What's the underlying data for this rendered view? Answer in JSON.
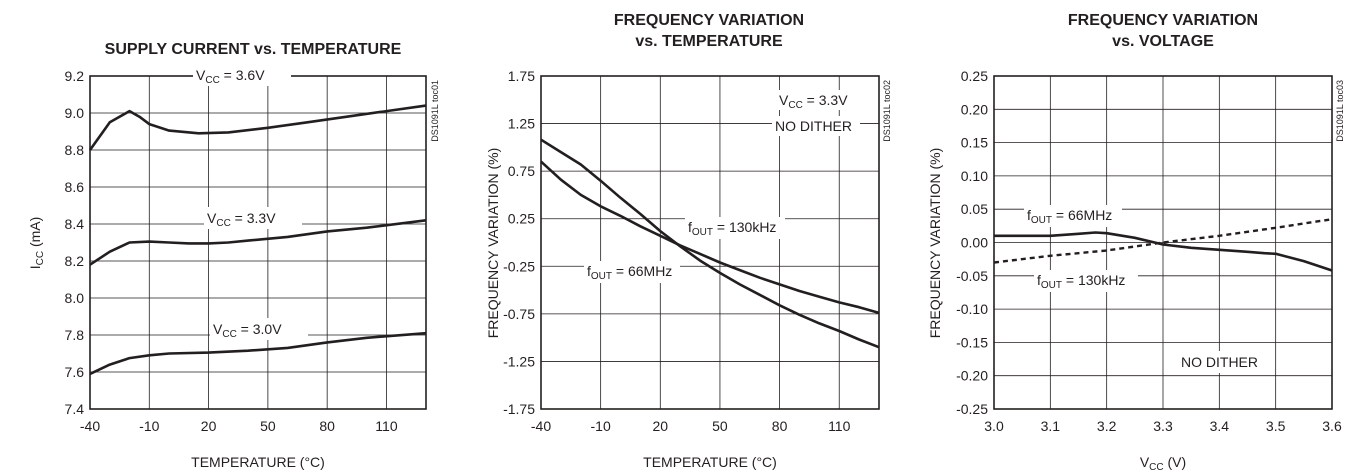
{
  "chart_data": [
    {
      "type": "line",
      "title": "SUPPLY CURRENT vs. TEMPERATURE",
      "xlabel": "TEMPERATURE (°C)",
      "ylabel": {
        "main": "I",
        "sub": "CC",
        "unit": " (mA)"
      },
      "xlim": [
        -40,
        130
      ],
      "ylim": [
        7.4,
        9.2
      ],
      "xticks": [
        -40,
        -10,
        20,
        50,
        80,
        110
      ],
      "xtick_labels": [
        "-40",
        "-10",
        "20",
        "50",
        "80",
        "110"
      ],
      "yticks": [
        7.4,
        7.6,
        7.8,
        8.0,
        8.2,
        8.4,
        8.6,
        8.8,
        9.0,
        9.2
      ],
      "ytick_labels": [
        "7.4",
        "7.6",
        "7.8",
        "8.0",
        "8.2",
        "8.4",
        "8.6",
        "8.8",
        "9.0",
        "9.2"
      ],
      "grid": true,
      "code": "DS1091L toc01",
      "series": [
        {
          "style": "solid",
          "x": [
            -40,
            -30,
            -20,
            -15,
            -10,
            0,
            15,
            30,
            50,
            70,
            90,
            110,
            130
          ],
          "y": [
            8.8,
            8.95,
            9.01,
            8.98,
            8.94,
            8.905,
            8.89,
            8.895,
            8.92,
            8.95,
            8.98,
            9.01,
            9.04
          ]
        },
        {
          "style": "solid",
          "x": [
            -40,
            -30,
            -20,
            -10,
            0,
            10,
            20,
            30,
            40,
            60,
            80,
            100,
            130
          ],
          "y": [
            8.18,
            8.25,
            8.3,
            8.305,
            8.3,
            8.295,
            8.295,
            8.3,
            8.31,
            8.33,
            8.36,
            8.38,
            8.42
          ]
        },
        {
          "style": "solid",
          "x": [
            -40,
            -30,
            -20,
            -10,
            0,
            20,
            40,
            60,
            80,
            100,
            130
          ],
          "y": [
            7.59,
            7.64,
            7.675,
            7.69,
            7.7,
            7.705,
            7.715,
            7.73,
            7.76,
            7.785,
            7.81
          ]
        }
      ],
      "annotations": [
        {
          "main": "V",
          "sub": "CC",
          "rest": " = 3.6V"
        },
        {
          "main": "V",
          "sub": "CC",
          "rest": " = 3.3V"
        },
        {
          "main": "V",
          "sub": "CC",
          "rest": " = 3.0V"
        }
      ]
    },
    {
      "type": "line",
      "title": [
        "FREQUENCY VARIATION",
        "vs. TEMPERATURE"
      ],
      "xlabel": "TEMPERATURE (°C)",
      "ylabel": "FREQUENCY VARIATION (%)",
      "xlim": [
        -40,
        130
      ],
      "ylim": [
        -1.75,
        1.75
      ],
      "xticks": [
        -40,
        -10,
        20,
        50,
        80,
        110
      ],
      "xtick_labels": [
        "-40",
        "-10",
        "20",
        "50",
        "80",
        "110"
      ],
      "yticks": [
        -1.75,
        -1.25,
        -0.75,
        -0.25,
        0.25,
        0.75,
        1.25,
        1.75
      ],
      "ytick_labels": [
        "-1.75",
        "-1.25",
        "-0.75",
        "-0.25",
        "0.25",
        "0.75",
        "1.25",
        "1.75"
      ],
      "grid": true,
      "code": "DS1091L toc02",
      "series": [
        {
          "style": "solid",
          "x": [
            -40,
            -30,
            -20,
            -10,
            0,
            10,
            20,
            30,
            40,
            50,
            60,
            70,
            80,
            90,
            100,
            110,
            120,
            130
          ],
          "y": [
            1.08,
            0.95,
            0.82,
            0.65,
            0.47,
            0.3,
            0.12,
            -0.04,
            -0.19,
            -0.32,
            -0.44,
            -0.55,
            -0.66,
            -0.76,
            -0.85,
            -0.93,
            -1.02,
            -1.1
          ]
        },
        {
          "style": "solid",
          "x": [
            -40,
            -30,
            -20,
            -10,
            0,
            10,
            20,
            30,
            40,
            50,
            60,
            70,
            80,
            90,
            100,
            110,
            120,
            130
          ],
          "y": [
            0.85,
            0.66,
            0.5,
            0.38,
            0.28,
            0.17,
            0.07,
            -0.03,
            -0.12,
            -0.21,
            -0.29,
            -0.37,
            -0.44,
            -0.51,
            -0.57,
            -0.63,
            -0.68,
            -0.74
          ]
        }
      ],
      "annotations": [
        {
          "main": "V",
          "sub": "CC",
          "rest": " = 3.3V"
        },
        {
          "main": "NO DITHER"
        },
        {
          "main": "f",
          "sub": "OUT",
          "rest": " = 130kHz"
        },
        {
          "main": "f",
          "sub": "OUT",
          "rest": " = 66MHz"
        }
      ]
    },
    {
      "type": "line",
      "title": [
        "FREQUENCY VARIATION",
        "vs. VOLTAGE"
      ],
      "xlabel": {
        "main": "V",
        "sub": "CC",
        "unit": " (V)"
      },
      "ylabel": "FREQUENCY VARIATION (%)",
      "xlim": [
        3.0,
        3.6
      ],
      "ylim": [
        -0.25,
        0.25
      ],
      "xticks": [
        3.0,
        3.1,
        3.2,
        3.3,
        3.4,
        3.5,
        3.6
      ],
      "xtick_labels": [
        "3.0",
        "3.1",
        "3.2",
        "3.3",
        "3.4",
        "3.5",
        "3.6"
      ],
      "yticks": [
        -0.25,
        -0.2,
        -0.15,
        -0.1,
        -0.05,
        0.0,
        0.05,
        0.1,
        0.15,
        0.2,
        0.25
      ],
      "ytick_labels": [
        "-0.25",
        "-0.20",
        "-0.15",
        "-0.10",
        "-0.05",
        "0.00",
        "0.05",
        "0.10",
        "0.15",
        "0.20",
        "0.25"
      ],
      "grid": true,
      "code": "DS1091L toc03",
      "series": [
        {
          "style": "solid",
          "x": [
            3.0,
            3.05,
            3.1,
            3.15,
            3.18,
            3.2,
            3.25,
            3.3,
            3.35,
            3.4,
            3.45,
            3.48,
            3.5,
            3.55,
            3.6
          ],
          "y": [
            0.01,
            0.01,
            0.01,
            0.013,
            0.015,
            0.014,
            0.007,
            -0.003,
            -0.008,
            -0.011,
            -0.014,
            -0.016,
            -0.017,
            -0.028,
            -0.042
          ]
        },
        {
          "style": "dotted",
          "x": [
            3.0,
            3.1,
            3.2,
            3.3,
            3.4,
            3.5,
            3.6
          ],
          "y": [
            -0.03,
            -0.02,
            -0.012,
            0.0,
            0.01,
            0.022,
            0.035
          ]
        }
      ],
      "annotations": [
        {
          "main": "f",
          "sub": "OUT",
          "rest": " = 66MHz"
        },
        {
          "main": "f",
          "sub": "OUT",
          "rest": " = 130kHz"
        },
        {
          "main": "NO DITHER"
        }
      ]
    }
  ]
}
